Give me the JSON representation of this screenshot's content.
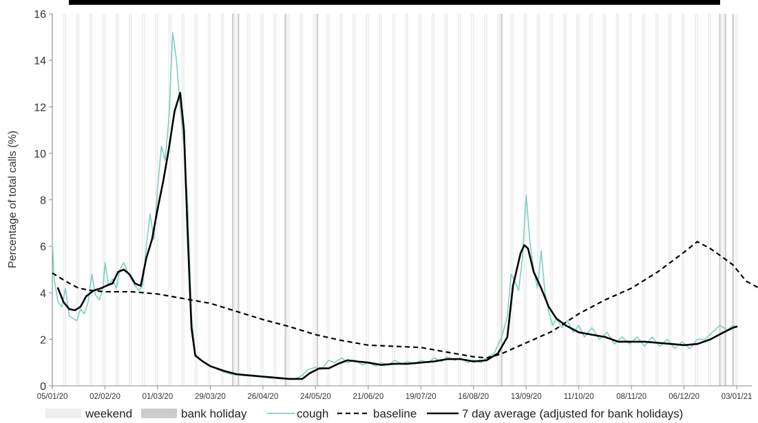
{
  "chart_data": {
    "type": "line",
    "ylabel": "Percentage of total calls (%)",
    "ylim": [
      0,
      16
    ],
    "yticks": [
      0,
      2,
      4,
      6,
      8,
      10,
      12,
      14,
      16
    ],
    "x_start": "05/01/20",
    "x_end": "11/01/21",
    "x_tick_labels": [
      "05/01/20",
      "02/02/20",
      "01/03/20",
      "29/03/20",
      "26/04/20",
      "24/05/20",
      "21/06/20",
      "19/07/20",
      "16/08/20",
      "13/09/20",
      "11/10/20",
      "08/11/20",
      "06/12/20",
      "03/01/21"
    ],
    "grid": false,
    "legend_position": "bottom",
    "legend": [
      {
        "name": "weekend",
        "kind": "band",
        "color": "#eeeeee"
      },
      {
        "name": "bank holiday",
        "kind": "band",
        "color": "#cccccc"
      },
      {
        "name": "cough",
        "kind": "line",
        "color": "#7ecdc4"
      },
      {
        "name": "baseline",
        "kind": "dashed",
        "color": "#000000"
      },
      {
        "name": "7 day average (adjusted for bank holidays)",
        "kind": "line",
        "color": "#000000"
      }
    ],
    "bank_holidays": [
      "10/04/20",
      "13/04/20",
      "08/05/20",
      "25/05/20",
      "31/08/20",
      "25/12/20",
      "28/12/20",
      "01/01/21"
    ],
    "series": [
      {
        "name": "cough",
        "color": "#7ecdc4",
        "points": [
          [
            "05/01/20",
            6.2
          ],
          [
            "06/01/20",
            4.6
          ],
          [
            "08/01/20",
            3.6
          ],
          [
            "10/01/20",
            3.4
          ],
          [
            "12/01/20",
            4.2
          ],
          [
            "14/01/20",
            3.0
          ],
          [
            "16/01/20",
            2.9
          ],
          [
            "18/01/20",
            2.8
          ],
          [
            "20/01/20",
            3.3
          ],
          [
            "22/01/20",
            3.1
          ],
          [
            "24/01/20",
            3.6
          ],
          [
            "26/01/20",
            4.8
          ],
          [
            "28/01/20",
            3.9
          ],
          [
            "30/01/20",
            3.7
          ],
          [
            "01/02/20",
            4.2
          ],
          [
            "02/02/20",
            5.3
          ],
          [
            "04/02/20",
            4.3
          ],
          [
            "06/02/20",
            4.6
          ],
          [
            "08/02/20",
            4.2
          ],
          [
            "10/02/20",
            5.0
          ],
          [
            "12/02/20",
            5.3
          ],
          [
            "14/02/20",
            4.9
          ],
          [
            "16/02/20",
            4.6
          ],
          [
            "18/02/20",
            4.3
          ],
          [
            "20/02/20",
            4.1
          ],
          [
            "22/02/20",
            4.3
          ],
          [
            "24/02/20",
            6.0
          ],
          [
            "26/02/20",
            7.4
          ],
          [
            "28/02/20",
            6.3
          ],
          [
            "01/03/20",
            8.5
          ],
          [
            "03/03/20",
            10.3
          ],
          [
            "05/03/20",
            9.7
          ],
          [
            "07/03/20",
            11.5
          ],
          [
            "09/03/20",
            15.2
          ],
          [
            "11/03/20",
            14.0
          ],
          [
            "13/03/20",
            12.0
          ],
          [
            "15/03/20",
            10.3
          ],
          [
            "17/03/20",
            7.8
          ],
          [
            "19/03/20",
            3.0
          ],
          [
            "21/03/20",
            1.4
          ],
          [
            "24/03/20",
            1.1
          ],
          [
            "28/03/20",
            0.9
          ],
          [
            "01/04/20",
            0.75
          ],
          [
            "05/04/20",
            0.6
          ],
          [
            "09/04/20",
            0.5
          ],
          [
            "15/04/20",
            0.45
          ],
          [
            "22/04/20",
            0.4
          ],
          [
            "29/04/20",
            0.35
          ],
          [
            "06/05/20",
            0.3
          ],
          [
            "13/05/20",
            0.3
          ],
          [
            "17/05/20",
            0.45
          ],
          [
            "20/05/20",
            0.7
          ],
          [
            "24/05/20",
            0.8
          ],
          [
            "27/05/20",
            0.7
          ],
          [
            "31/05/20",
            1.1
          ],
          [
            "03/06/20",
            1.0
          ],
          [
            "07/06/20",
            1.2
          ],
          [
            "10/06/20",
            1.0
          ],
          [
            "14/06/20",
            1.1
          ],
          [
            "18/06/20",
            0.9
          ],
          [
            "21/06/20",
            1.0
          ],
          [
            "25/06/20",
            0.85
          ],
          [
            "28/06/20",
            1.0
          ],
          [
            "02/07/20",
            0.9
          ],
          [
            "05/07/20",
            1.1
          ],
          [
            "09/07/20",
            0.95
          ],
          [
            "12/07/20",
            1.05
          ],
          [
            "16/07/20",
            0.95
          ],
          [
            "19/07/20",
            1.1
          ],
          [
            "23/07/20",
            1.0
          ],
          [
            "26/07/20",
            1.2
          ],
          [
            "30/07/20",
            1.05
          ],
          [
            "02/08/20",
            1.25
          ],
          [
            "06/08/20",
            1.1
          ],
          [
            "09/08/20",
            1.2
          ],
          [
            "13/08/20",
            1.0
          ],
          [
            "16/08/20",
            1.1
          ],
          [
            "20/08/20",
            1.0
          ],
          [
            "23/08/20",
            1.2
          ],
          [
            "27/08/20",
            1.4
          ],
          [
            "31/08/20",
            2.1
          ],
          [
            "03/09/20",
            3.0
          ],
          [
            "05/09/20",
            4.8
          ],
          [
            "07/09/20",
            4.5
          ],
          [
            "09/09/20",
            4.1
          ],
          [
            "11/09/20",
            5.5
          ],
          [
            "13/09/20",
            8.2
          ],
          [
            "15/09/20",
            6.2
          ],
          [
            "17/09/20",
            5.0
          ],
          [
            "19/09/20",
            4.2
          ],
          [
            "21/09/20",
            5.8
          ],
          [
            "23/09/20",
            4.0
          ],
          [
            "25/09/20",
            3.2
          ],
          [
            "27/09/20",
            2.6
          ],
          [
            "29/09/20",
            2.9
          ],
          [
            "02/10/20",
            2.5
          ],
          [
            "05/10/20",
            2.8
          ],
          [
            "08/10/20",
            2.3
          ],
          [
            "11/10/20",
            2.6
          ],
          [
            "14/10/20",
            2.1
          ],
          [
            "18/10/20",
            2.5
          ],
          [
            "22/10/20",
            2.0
          ],
          [
            "26/10/20",
            2.3
          ],
          [
            "30/10/20",
            1.8
          ],
          [
            "03/11/20",
            2.1
          ],
          [
            "07/11/20",
            1.8
          ],
          [
            "11/11/20",
            2.1
          ],
          [
            "15/11/20",
            1.7
          ],
          [
            "19/11/20",
            2.1
          ],
          [
            "23/11/20",
            1.7
          ],
          [
            "27/11/20",
            2.0
          ],
          [
            "01/12/20",
            1.6
          ],
          [
            "05/12/20",
            1.9
          ],
          [
            "09/12/20",
            1.6
          ],
          [
            "13/12/20",
            2.0
          ],
          [
            "17/12/20",
            2.0
          ],
          [
            "21/12/20",
            2.3
          ],
          [
            "25/12/20",
            2.6
          ],
          [
            "29/12/20",
            2.4
          ],
          [
            "01/01/21",
            2.6
          ],
          [
            "03/01/21",
            2.5
          ]
        ]
      },
      {
        "name": "baseline",
        "color": "#000000",
        "style": "dashed",
        "points": [
          [
            "05/01/20",
            4.85
          ],
          [
            "12/01/20",
            4.5
          ],
          [
            "19/01/20",
            4.2
          ],
          [
            "26/01/20",
            4.1
          ],
          [
            "02/02/20",
            4.05
          ],
          [
            "16/02/20",
            4.05
          ],
          [
            "01/03/20",
            3.95
          ],
          [
            "15/03/20",
            3.75
          ],
          [
            "29/03/20",
            3.55
          ],
          [
            "12/04/20",
            3.2
          ],
          [
            "26/04/20",
            2.85
          ],
          [
            "10/05/20",
            2.55
          ],
          [
            "24/05/20",
            2.2
          ],
          [
            "07/06/20",
            1.95
          ],
          [
            "21/06/20",
            1.75
          ],
          [
            "05/07/20",
            1.7
          ],
          [
            "19/07/20",
            1.65
          ],
          [
            "02/08/20",
            1.45
          ],
          [
            "16/08/20",
            1.25
          ],
          [
            "23/08/20",
            1.2
          ],
          [
            "30/08/20",
            1.35
          ],
          [
            "06/09/20",
            1.6
          ],
          [
            "13/09/20",
            1.85
          ],
          [
            "27/09/20",
            2.35
          ],
          [
            "11/10/20",
            3.1
          ],
          [
            "25/10/20",
            3.7
          ],
          [
            "08/11/20",
            4.2
          ],
          [
            "22/11/20",
            4.9
          ],
          [
            "06/12/20",
            5.75
          ],
          [
            "13/12/20",
            6.2
          ],
          [
            "20/12/20",
            5.9
          ],
          [
            "27/12/20",
            5.5
          ],
          [
            "01/01/21",
            5.2
          ],
          [
            "08/01/21",
            4.5
          ],
          [
            "15/01/21",
            4.2
          ],
          [
            "22/01/21",
            4.15
          ]
        ]
      },
      {
        "name": "7 day average (adjusted for bank holidays)",
        "color": "#000000",
        "style": "solid",
        "points": [
          [
            "08/01/20",
            4.2
          ],
          [
            "11/01/20",
            3.6
          ],
          [
            "14/01/20",
            3.3
          ],
          [
            "17/01/20",
            3.25
          ],
          [
            "20/01/20",
            3.4
          ],
          [
            "23/01/20",
            3.85
          ],
          [
            "27/01/20",
            4.1
          ],
          [
            "31/01/20",
            4.2
          ],
          [
            "04/02/20",
            4.35
          ],
          [
            "06/02/20",
            4.4
          ],
          [
            "09/02/20",
            4.9
          ],
          [
            "12/02/20",
            5.0
          ],
          [
            "15/02/20",
            4.8
          ],
          [
            "18/02/20",
            4.4
          ],
          [
            "21/02/20",
            4.3
          ],
          [
            "24/02/20",
            5.5
          ],
          [
            "27/02/20",
            6.3
          ],
          [
            "01/03/20",
            7.6
          ],
          [
            "04/03/20",
            8.8
          ],
          [
            "07/03/20",
            10.2
          ],
          [
            "10/03/20",
            11.8
          ],
          [
            "13/03/20",
            12.6
          ],
          [
            "15/03/20",
            11.0
          ],
          [
            "17/03/20",
            6.5
          ],
          [
            "19/03/20",
            2.5
          ],
          [
            "21/03/20",
            1.3
          ],
          [
            "25/03/20",
            1.05
          ],
          [
            "29/03/20",
            0.85
          ],
          [
            "05/04/20",
            0.65
          ],
          [
            "12/04/20",
            0.5
          ],
          [
            "19/04/20",
            0.45
          ],
          [
            "26/04/20",
            0.4
          ],
          [
            "03/05/20",
            0.35
          ],
          [
            "10/05/20",
            0.3
          ],
          [
            "17/05/20",
            0.3
          ],
          [
            "21/05/20",
            0.55
          ],
          [
            "26/05/20",
            0.75
          ],
          [
            "31/05/20",
            0.75
          ],
          [
            "05/06/20",
            0.95
          ],
          [
            "10/06/20",
            1.1
          ],
          [
            "15/06/20",
            1.05
          ],
          [
            "21/06/20",
            1.0
          ],
          [
            "28/06/20",
            0.9
          ],
          [
            "05/07/20",
            0.95
          ],
          [
            "12/07/20",
            0.95
          ],
          [
            "19/07/20",
            1.0
          ],
          [
            "26/07/20",
            1.05
          ],
          [
            "02/08/20",
            1.15
          ],
          [
            "09/08/20",
            1.15
          ],
          [
            "16/08/20",
            1.05
          ],
          [
            "23/08/20",
            1.1
          ],
          [
            "29/08/20",
            1.4
          ],
          [
            "03/09/20",
            2.1
          ],
          [
            "06/09/20",
            4.3
          ],
          [
            "10/09/20",
            5.7
          ],
          [
            "12/09/20",
            6.05
          ],
          [
            "14/09/20",
            5.9
          ],
          [
            "17/09/20",
            4.9
          ],
          [
            "21/09/20",
            4.2
          ],
          [
            "25/09/20",
            3.4
          ],
          [
            "29/09/20",
            2.9
          ],
          [
            "04/10/20",
            2.6
          ],
          [
            "11/10/20",
            2.3
          ],
          [
            "18/10/20",
            2.2
          ],
          [
            "25/10/20",
            2.1
          ],
          [
            "01/11/20",
            1.9
          ],
          [
            "08/11/20",
            1.9
          ],
          [
            "15/11/20",
            1.9
          ],
          [
            "22/11/20",
            1.85
          ],
          [
            "29/11/20",
            1.8
          ],
          [
            "06/12/20",
            1.75
          ],
          [
            "13/12/20",
            1.8
          ],
          [
            "20/12/20",
            2.0
          ],
          [
            "27/12/20",
            2.3
          ],
          [
            "01/01/21",
            2.5
          ],
          [
            "03/01/21",
            2.55
          ]
        ]
      }
    ]
  }
}
